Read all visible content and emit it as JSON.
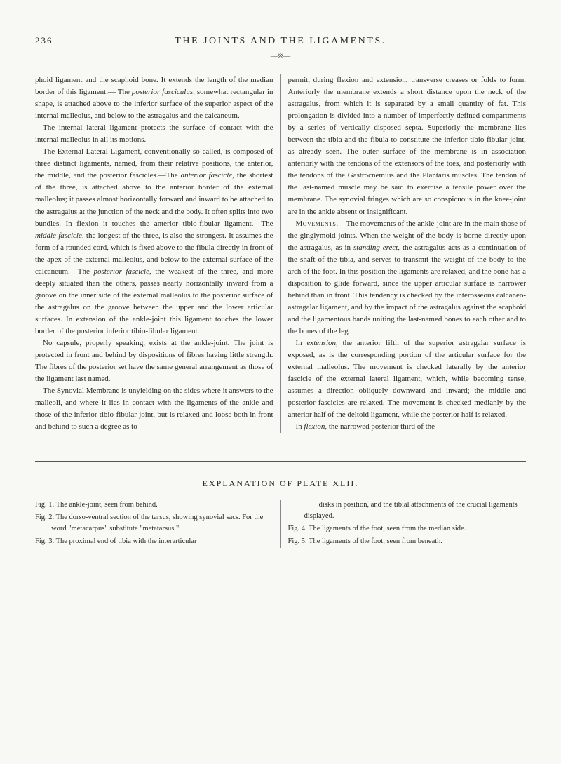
{
  "header": {
    "page_number": "236",
    "title": "THE JOINTS AND THE LIGAMENTS."
  },
  "body": {
    "left_column": [
      "phoid ligament and the scaphoid bone. It extends the length of the median border of this ligament.— The <i>posterior fasciculus,</i> somewhat rectangular in shape, is attached above to the inferior surface of the superior aspect of the internal malleolus, and below to the astragalus and the calcaneum.",
      "The internal lateral ligament protects the surface of contact with the internal malleolus in all its motions.",
      "The External Lateral Ligament, conventionally so called, is composed of three distinct ligaments, named, from their relative positions, the anterior, the middle, and the posterior fascicles.—The <i>anterior fascicle,</i> the shortest of the three, is attached above to the anterior border of the external malleolus; it passes almost horizontally forward and inward to be attached to the astragalus at the junction of the neck and the body. It often splits into two bundles. In flexion it touches the anterior tibio-fibular ligament.—The <i>middle fascicle,</i> the longest of the three, is also the strongest. It assumes the form of a rounded cord, which is fixed above to the fibula directly in front of the apex of the external malleolus, and below to the external surface of the calcaneum.—The <i>posterior fascicle,</i> the weakest of the three, and more deeply situated than the others, passes nearly horizontally inward from a groove on the inner side of the external malleolus to the posterior surface of the astragalus on the groove between the upper and the lower articular surfaces. In extension of the ankle-joint this ligament touches the lower border of the posterior inferior tibio-fibular ligament.",
      "No capsule, properly speaking, exists at the ankle-joint. The joint is protected in front and behind by dispositions of fibres having little strength. The fibres of the posterior set have the same general arrangement as those of the ligament last named.",
      "The Synovial Membrane is unyielding on the sides where it answers to the malleoli, and where it lies in contact with the ligaments of the ankle and those of the inferior tibio-fibular joint, but is relaxed and loose both in front and behind to such a degree as to"
    ],
    "right_column": [
      "permit, during flexion and extension, transverse creases or folds to form. Anteriorly the membrane extends a short distance upon the neck of the astragalus, from which it is separated by a small quantity of fat. This prolongation is divided into a number of imperfectly defined compartments by a series of vertically disposed septa. Superiorly the membrane lies between the tibia and the fibula to constitute the inferior tibio-fibular joint, as already seen. The outer surface of the membrane is in association anteriorly with the tendons of the extensors of the toes, and posteriorly with the tendons of the Gastrocnemius and the Plantaris muscles. The tendon of the last-named muscle may be said to exercise a tensile power over the membrane. The synovial fringes which are so conspicuous in the knee-joint are in the ankle absent or insignificant.",
      "<sc>Movements.</sc>—The movements of the ankle-joint are in the main those of the ginglymoid joints. When the weight of the body is borne directly upon the astragalus, as in <i>standing erect,</i> the astragalus acts as a continuation of the shaft of the tibia, and serves to transmit the weight of the body to the arch of the foot. In this position the ligaments are relaxed, and the bone has a disposition to glide forward, since the upper articular surface is narrower behind than in front. This tendency is checked by the interosseous calcaneo-astragalar ligament, and by the impact of the astragalus against the scaphoid and the ligamentous bands uniting the last-named bones to each other and to the bones of the leg.",
      "In <i>extension,</i> the anterior fifth of the superior astragalar surface is exposed, as is the corresponding portion of the articular surface for the external malleolus. The movement is checked laterally by the anterior fascicle of the external lateral ligament, which, while becoming tense, assumes a direction obliquely downward and inward; the middle and posterior fascicles are relaxed. The movement is checked medianly by the anterior half of the deltoid ligament, while the posterior half is relaxed.",
      "In <i>flexion,</i> the narrowed posterior third of the"
    ]
  },
  "explanation": {
    "title": "EXPLANATION OF PLATE XLII.",
    "left": [
      "Fig. 1. The ankle-joint, seen from behind.",
      "Fig. 2. The dorso-ventral section of the tarsus, showing synovial sacs. For the word \"metacarpus\" substitute \"metatarsus.\"",
      "Fig. 3. The proximal end of tibia with the interarticular"
    ],
    "right": [
      "disks in position, and the tibial attachments of the crucial ligaments displayed.",
      "Fig. 4. The ligaments of the foot, seen from the median side.",
      "Fig. 5. The ligaments of the foot, seen from beneath."
    ]
  }
}
